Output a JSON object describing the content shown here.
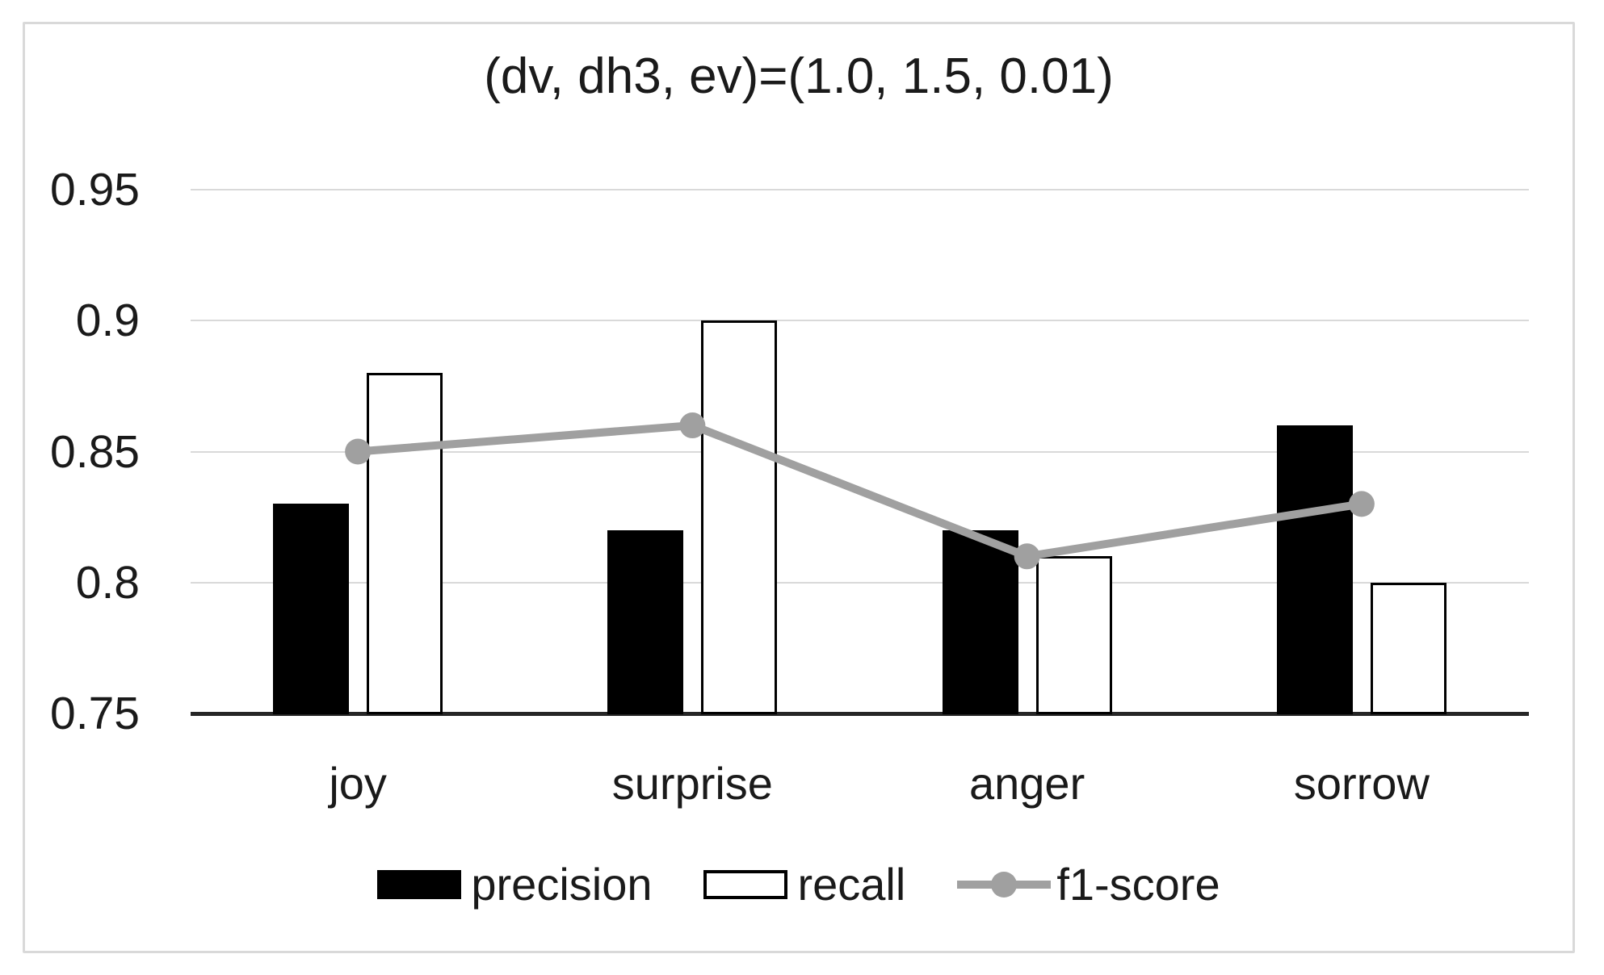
{
  "figure": {
    "background": "#ffffff",
    "border_color": "#d9d9d9"
  },
  "chart_data": {
    "type": "bar",
    "subtype": "combo-bar-line",
    "title": "(dv, dh3, ev)=(1.0, 1.5, 0.01)",
    "categories": [
      "joy",
      "surprise",
      "anger",
      "sorrow"
    ],
    "series": [
      {
        "name": "precision",
        "type": "bar",
        "values": [
          0.83,
          0.82,
          0.82,
          0.86
        ],
        "fill": "#000000",
        "stroke": "#000000"
      },
      {
        "name": "recall",
        "type": "bar",
        "values": [
          0.88,
          0.9,
          0.81,
          0.8
        ],
        "fill": "#ffffff",
        "stroke": "#000000"
      },
      {
        "name": "f1-score",
        "type": "line",
        "values": [
          0.85,
          0.86,
          0.81,
          0.83
        ],
        "color": "#a0a0a0",
        "marker": "circle"
      }
    ],
    "xlabel": "",
    "ylabel": "",
    "ylim": [
      0.75,
      0.95
    ],
    "yticks": [
      {
        "value": 0.95,
        "label": "0.95"
      },
      {
        "value": 0.9,
        "label": "0.9"
      },
      {
        "value": 0.85,
        "label": "0.85"
      },
      {
        "value": 0.8,
        "label": "0.8"
      },
      {
        "value": 0.75,
        "label": "0.75"
      }
    ],
    "grid": true,
    "gridline_color": "#d9d9d9",
    "axis_color": "#262626",
    "text_color": "#1a1a1a",
    "legend_position": "bottom"
  }
}
